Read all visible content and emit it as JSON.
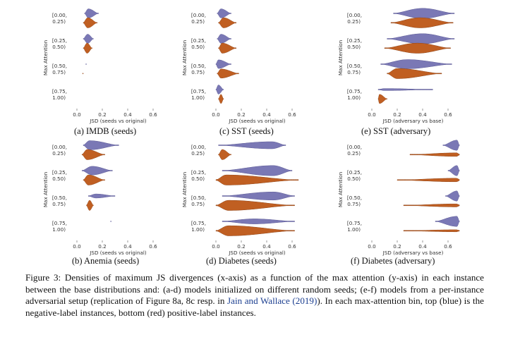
{
  "colors": {
    "negative": "#7a78b5",
    "positive": "#c05f22"
  },
  "figure": {
    "panels": [
      {
        "id": "a",
        "caption": "(a) IMDB (seeds)",
        "xlabel": "JSD (seeds vs original)",
        "ylabel": "Max Attention",
        "xlim": [
          -0.05,
          0.7
        ],
        "xticks": [
          "0.0",
          "0.2",
          "0.4",
          "0.6"
        ],
        "xtick_values": [
          0,
          0.2,
          0.4,
          0.6
        ],
        "bins": [
          {
            "label1": "[0.00,",
            "label2": "0.25)",
            "neg": {
              "min": 0.06,
              "max": 0.17,
              "peak": 0.09,
              "height": 0.9
            },
            "pos": {
              "min": 0.05,
              "max": 0.16,
              "peak": 0.085,
              "height": 1.0
            }
          },
          {
            "label1": "[0.25,",
            "label2": "0.50)",
            "neg": {
              "min": 0.05,
              "max": 0.13,
              "peak": 0.085,
              "height": 0.9
            },
            "pos": {
              "min": 0.05,
              "max": 0.12,
              "peak": 0.08,
              "height": 1.0
            }
          },
          {
            "label1": "[0.50,",
            "label2": "0.75)",
            "neg": {
              "min": 0.07,
              "max": 0.075,
              "peak": 0.072,
              "height": 0.05
            },
            "pos": {
              "min": 0.045,
              "max": 0.05,
              "peak": 0.047,
              "height": 0.05
            }
          },
          {
            "label1": "[0.75,",
            "label2": "1.00)",
            "neg": null,
            "pos": null
          }
        ]
      },
      {
        "id": "c",
        "caption": "(c) SST (seeds)",
        "xlabel": "JSD (seeds vs original)",
        "ylabel": "Max Attention",
        "xlim": [
          -0.05,
          0.7
        ],
        "xticks": [
          "0.0",
          "0.2",
          "0.4",
          "0.6"
        ],
        "xtick_values": [
          0,
          0.2,
          0.4,
          0.6
        ],
        "bins": [
          {
            "label1": "[0.00,",
            "label2": "0.25)",
            "neg": {
              "min": 0.01,
              "max": 0.12,
              "peak": 0.04,
              "height": 0.9
            },
            "pos": {
              "min": 0.02,
              "max": 0.16,
              "peak": 0.06,
              "height": 1.0
            }
          },
          {
            "label1": "[0.25,",
            "label2": "0.50)",
            "neg": {
              "min": 0.01,
              "max": 0.12,
              "peak": 0.04,
              "height": 0.9
            },
            "pos": {
              "min": 0.02,
              "max": 0.16,
              "peak": 0.05,
              "height": 1.0
            }
          },
          {
            "label1": "[0.50,",
            "label2": "0.75)",
            "neg": {
              "min": 0.0,
              "max": 0.12,
              "peak": 0.02,
              "height": 0.85
            },
            "pos": {
              "min": 0.01,
              "max": 0.18,
              "peak": 0.04,
              "height": 0.9
            }
          },
          {
            "label1": "[0.75,",
            "label2": "1.00)",
            "neg": {
              "min": 0.0,
              "max": 0.06,
              "peak": 0.02,
              "height": 0.9
            },
            "pos": {
              "min": 0.02,
              "max": 0.06,
              "peak": 0.04,
              "height": 0.9
            }
          }
        ]
      },
      {
        "id": "e",
        "caption": "(e) SST (adversary)",
        "xlabel": "JSD (adversary vs base)",
        "ylabel": "Max Attention",
        "xlim": [
          -0.05,
          0.7
        ],
        "xticks": [
          "0.0",
          "0.2",
          "0.4",
          "0.6"
        ],
        "xtick_values": [
          0,
          0.2,
          0.4,
          0.6
        ],
        "bins": [
          {
            "label1": "[0.00,",
            "label2": "0.25)",
            "neg": {
              "min": 0.17,
              "max": 0.65,
              "peak": 0.4,
              "height": 1.0
            },
            "pos": {
              "min": 0.15,
              "max": 0.64,
              "peak": 0.38,
              "height": 1.0
            }
          },
          {
            "label1": "[0.25,",
            "label2": "0.50)",
            "neg": {
              "min": 0.12,
              "max": 0.65,
              "peak": 0.4,
              "height": 1.0
            },
            "pos": {
              "min": 0.1,
              "max": 0.62,
              "peak": 0.36,
              "height": 1.0
            }
          },
          {
            "label1": "[0.50,",
            "label2": "0.75)",
            "neg": {
              "min": 0.07,
              "max": 0.63,
              "peak": 0.28,
              "height": 0.9
            },
            "pos": {
              "min": 0.12,
              "max": 0.55,
              "peak": 0.2,
              "height": 1.0
            }
          },
          {
            "label1": "[0.75,",
            "label2": "1.00)",
            "neg": {
              "min": 0.05,
              "max": 0.48,
              "peak": 0.1,
              "height": 0.2
            },
            "pos": {
              "min": 0.05,
              "max": 0.12,
              "peak": 0.06,
              "height": 0.9
            }
          }
        ]
      },
      {
        "id": "b",
        "caption": "(b) Anemia (seeds)",
        "xlabel": "JSD (seeds vs original)",
        "ylabel": "Max Attention",
        "xlim": [
          -0.05,
          0.7
        ],
        "xticks": [
          "0.0",
          "0.2",
          "0.4",
          "0.6"
        ],
        "xtick_values": [
          0,
          0.2,
          0.4,
          0.6
        ],
        "bins": [
          {
            "label1": "[0.00,",
            "label2": "0.25)",
            "neg": {
              "min": 0.05,
              "max": 0.33,
              "peak": 0.1,
              "height": 0.9
            },
            "pos": {
              "min": 0.04,
              "max": 0.22,
              "peak": 0.08,
              "height": 1.0
            }
          },
          {
            "label1": "[0.25,",
            "label2": "0.50)",
            "neg": {
              "min": 0.04,
              "max": 0.28,
              "peak": 0.12,
              "height": 0.85
            },
            "pos": {
              "min": 0.05,
              "max": 0.22,
              "peak": 0.09,
              "height": 1.0
            }
          },
          {
            "label1": "[0.50,",
            "label2": "0.75)",
            "neg": {
              "min": 0.09,
              "max": 0.3,
              "peak": 0.15,
              "height": 0.4
            },
            "pos": {
              "min": 0.075,
              "max": 0.13,
              "peak": 0.1,
              "height": 1.0
            }
          },
          {
            "label1": "[0.75,",
            "label2": "1.00)",
            "neg": {
              "min": 0.265,
              "max": 0.27,
              "peak": 0.267,
              "height": 0.05
            },
            "pos": null
          }
        ]
      },
      {
        "id": "d",
        "caption": "(d) Diabetes (seeds)",
        "xlabel": "JSD (seeds vs original)",
        "ylabel": "Max Attention",
        "xlim": [
          -0.05,
          0.7
        ],
        "xticks": [
          "0.0",
          "0.2",
          "0.4",
          "0.6"
        ],
        "xtick_values": [
          0,
          0.2,
          0.4,
          0.6
        ],
        "bins": [
          {
            "label1": "[0.00,",
            "label2": "0.25)",
            "neg": {
              "min": 0.02,
              "max": 0.55,
              "peak": 0.44,
              "height": 0.7
            },
            "pos": {
              "min": 0.02,
              "max": 0.12,
              "peak": 0.05,
              "height": 1.0
            }
          },
          {
            "label1": "[0.25,",
            "label2": "0.50)",
            "neg": {
              "min": 0.05,
              "max": 0.6,
              "peak": 0.45,
              "height": 1.0
            },
            "pos": {
              "min": 0.0,
              "max": 0.65,
              "peak": 0.08,
              "height": 1.0
            }
          },
          {
            "label1": "[0.50,",
            "label2": "0.75)",
            "neg": {
              "min": 0.05,
              "max": 0.62,
              "peak": 0.45,
              "height": 0.8
            },
            "pos": {
              "min": 0.0,
              "max": 0.62,
              "peak": 0.1,
              "height": 1.0
            }
          },
          {
            "label1": "[0.75,",
            "label2": "1.00)",
            "neg": {
              "min": 0.05,
              "max": 0.62,
              "peak": 0.3,
              "height": 0.5
            },
            "pos": {
              "min": 0.0,
              "max": 0.62,
              "peak": 0.1,
              "height": 1.0
            }
          }
        ]
      },
      {
        "id": "f",
        "caption": "(f) Diabetes (adversary)",
        "xlabel": "JSD (adversary vs base)",
        "ylabel": "Max Attention",
        "xlim": [
          -0.05,
          0.7
        ],
        "xticks": [
          "0.0",
          "0.2",
          "0.4",
          "0.6"
        ],
        "xtick_values": [
          0,
          0.2,
          0.4,
          0.6
        ],
        "bins": [
          {
            "label1": "[0.00,",
            "label2": "0.25)",
            "neg": {
              "min": 0.56,
              "max": 0.69,
              "peak": 0.67,
              "height": 1.0
            },
            "pos": {
              "min": 0.3,
              "max": 0.69,
              "peak": 0.67,
              "height": 0.35
            }
          },
          {
            "label1": "[0.25,",
            "label2": "0.50)",
            "neg": {
              "min": 0.6,
              "max": 0.69,
              "peak": 0.67,
              "height": 1.0
            },
            "pos": {
              "min": 0.2,
              "max": 0.69,
              "peak": 0.67,
              "height": 0.35
            }
          },
          {
            "label1": "[0.50,",
            "label2": "0.75)",
            "neg": {
              "min": 0.58,
              "max": 0.69,
              "peak": 0.67,
              "height": 1.0
            },
            "pos": {
              "min": 0.25,
              "max": 0.69,
              "peak": 0.67,
              "height": 0.3
            }
          },
          {
            "label1": "[0.75,",
            "label2": "1.00)",
            "neg": {
              "min": 0.5,
              "max": 0.69,
              "peak": 0.67,
              "height": 1.0
            },
            "pos": {
              "min": 0.25,
              "max": 0.69,
              "peak": 0.67,
              "height": 0.2
            }
          }
        ]
      }
    ],
    "main_caption": {
      "lead": "Figure 3: Densities of maximum JS divergences (x-axis) as a function of the max attention (y-axis) in each instance between the base distributions and: (a-d) models initialized on different random seeds; (e-f) models from a per-instance adversarial setup (replication of Figure 8a, 8c resp. in ",
      "citation": "Jain and Wallace",
      "year": "2019",
      "tail": "). In each max-attention bin, top (blue) is the negative-label instances, bottom (red) positive-label instances."
    }
  }
}
